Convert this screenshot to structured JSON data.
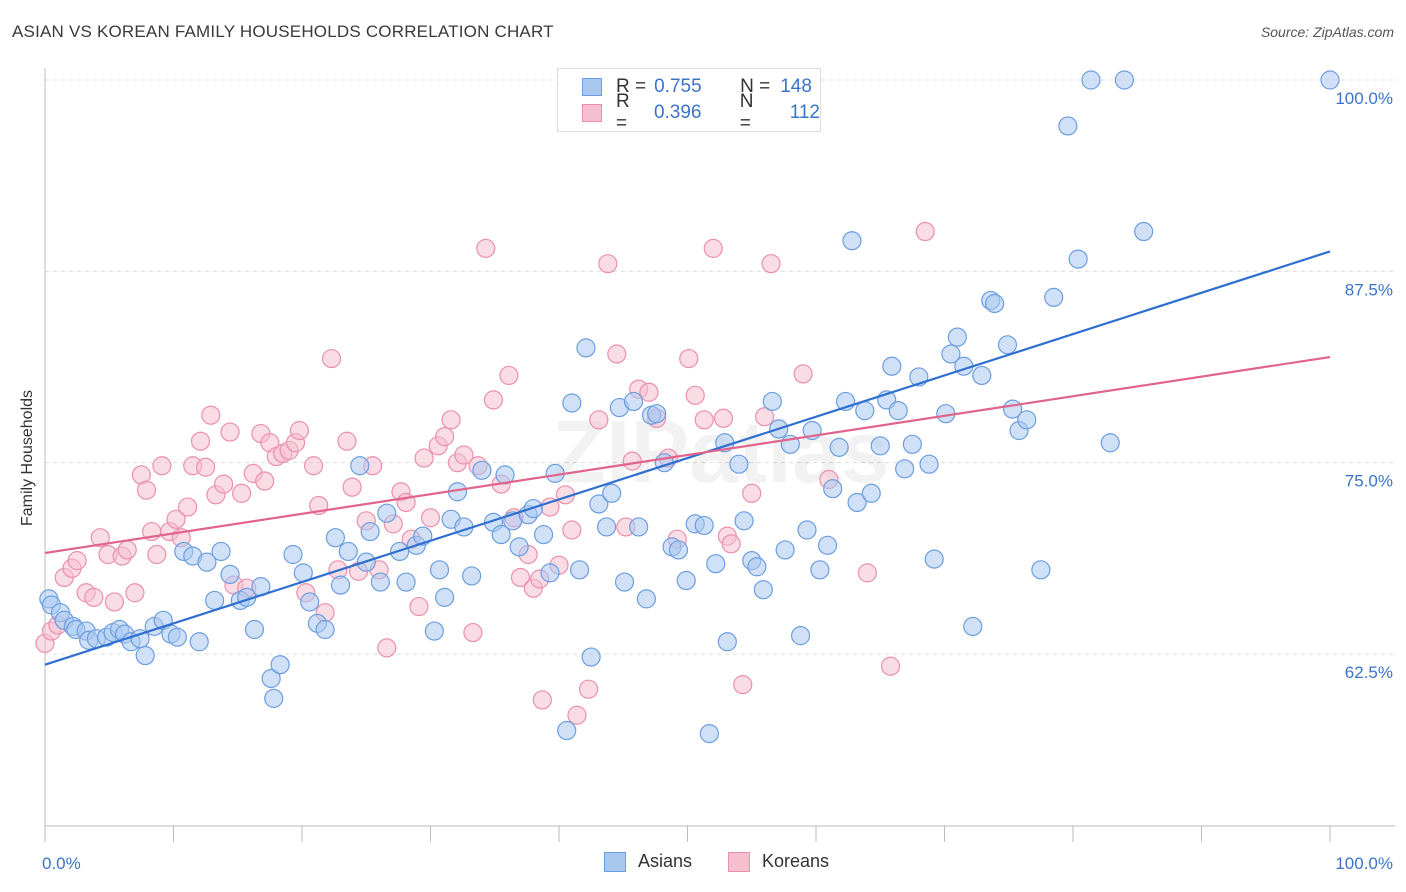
{
  "title": "ASIAN VS KOREAN FAMILY HOUSEHOLDS CORRELATION CHART",
  "source": "Source: ZipAtlas.com",
  "watermark": "ZIPatlas",
  "legend": {
    "asians": {
      "r_label": "R =",
      "r_value": "0.755",
      "n_label": "N =",
      "n_value": "148"
    },
    "koreans": {
      "r_label": "R =",
      "r_value": "0.396",
      "n_label": "N =",
      "n_value": "112"
    }
  },
  "colors": {
    "asians_fill": "#a9c8f0",
    "asians_stroke": "#6b9ee0",
    "asians_line": "#2f6fd0",
    "koreans_fill": "#f6bfd0",
    "koreans_stroke": "#eb8fae",
    "koreans_line": "#e0648c",
    "tick_label": "#3a74c8",
    "grid": "#dcdcdc"
  },
  "chart_data": {
    "type": "scatter",
    "title": "ASIAN VS KOREAN FAMILY HOUSEHOLDS CORRELATION CHART",
    "xlabel": "",
    "ylabel": "Family Households",
    "xlim": [
      0,
      100
    ],
    "ylim": [
      52.5,
      101
    ],
    "x_tick_labels": [
      "0.0%",
      "100.0%"
    ],
    "y_ticks": [
      62.5,
      75.0,
      87.5,
      100.0
    ],
    "y_tick_labels": [
      "62.5%",
      "75.0%",
      "87.5%",
      "100.0%"
    ],
    "grid": "horizontal dashed",
    "legend_position": "top-center",
    "bottom_legend": [
      "Asians",
      "Koreans"
    ],
    "series": [
      {
        "name": "Asians",
        "trend": {
          "x": [
            0,
            100
          ],
          "y": [
            61.8,
            88.8
          ]
        },
        "points": [
          [
            0.3,
            66.1
          ],
          [
            0.5,
            65.7
          ],
          [
            1.2,
            65.2
          ],
          [
            1.5,
            64.7
          ],
          [
            2.2,
            64.3
          ],
          [
            2.4,
            64.1
          ],
          [
            3.2,
            64.0
          ],
          [
            3.4,
            63.4
          ],
          [
            4.0,
            63.5
          ],
          [
            4.8,
            63.6
          ],
          [
            5.3,
            63.9
          ],
          [
            5.8,
            64.1
          ],
          [
            6.2,
            63.8
          ],
          [
            6.7,
            63.3
          ],
          [
            7.4,
            63.5
          ],
          [
            7.8,
            62.4
          ],
          [
            8.5,
            64.3
          ],
          [
            9.2,
            64.7
          ],
          [
            9.8,
            63.8
          ],
          [
            10.3,
            63.6
          ],
          [
            10.8,
            69.2
          ],
          [
            11.5,
            68.9
          ],
          [
            12.0,
            63.3
          ],
          [
            12.6,
            68.5
          ],
          [
            13.2,
            66.0
          ],
          [
            13.7,
            69.2
          ],
          [
            14.4,
            67.7
          ],
          [
            15.2,
            66.0
          ],
          [
            15.7,
            66.2
          ],
          [
            16.3,
            64.1
          ],
          [
            16.8,
            66.9
          ],
          [
            17.6,
            60.9
          ],
          [
            17.8,
            59.6
          ],
          [
            18.3,
            61.8
          ],
          [
            19.3,
            69.0
          ],
          [
            20.1,
            67.8
          ],
          [
            20.6,
            65.9
          ],
          [
            21.2,
            64.5
          ],
          [
            21.8,
            64.1
          ],
          [
            22.6,
            70.1
          ],
          [
            23.0,
            67.0
          ],
          [
            23.6,
            69.2
          ],
          [
            24.5,
            74.8
          ],
          [
            25.0,
            68.5
          ],
          [
            25.3,
            70.5
          ],
          [
            26.1,
            67.2
          ],
          [
            26.6,
            71.7
          ],
          [
            27.6,
            69.2
          ],
          [
            28.1,
            67.2
          ],
          [
            28.9,
            69.6
          ],
          [
            29.4,
            70.2
          ],
          [
            30.3,
            64.0
          ],
          [
            30.7,
            68.0
          ],
          [
            31.1,
            66.2
          ],
          [
            31.6,
            71.3
          ],
          [
            32.1,
            73.1
          ],
          [
            32.6,
            70.8
          ],
          [
            33.2,
            67.6
          ],
          [
            34.0,
            74.5
          ],
          [
            34.9,
            71.1
          ],
          [
            35.5,
            70.3
          ],
          [
            35.8,
            74.2
          ],
          [
            36.4,
            71.2
          ],
          [
            36.9,
            69.5
          ],
          [
            37.6,
            71.6
          ],
          [
            38.0,
            72.0
          ],
          [
            38.8,
            70.3
          ],
          [
            39.3,
            67.8
          ],
          [
            39.7,
            74.3
          ],
          [
            40.6,
            57.5
          ],
          [
            41.0,
            78.9
          ],
          [
            41.6,
            68.0
          ],
          [
            42.1,
            82.5
          ],
          [
            42.5,
            62.3
          ],
          [
            43.1,
            72.3
          ],
          [
            43.7,
            70.8
          ],
          [
            44.1,
            73.0
          ],
          [
            44.7,
            78.6
          ],
          [
            45.1,
            67.2
          ],
          [
            45.8,
            79.0
          ],
          [
            46.2,
            70.8
          ],
          [
            46.8,
            66.1
          ],
          [
            47.2,
            78.1
          ],
          [
            47.6,
            78.2
          ],
          [
            48.2,
            75.0
          ],
          [
            48.8,
            69.5
          ],
          [
            49.3,
            69.3
          ],
          [
            49.9,
            67.3
          ],
          [
            50.6,
            71.0
          ],
          [
            51.3,
            70.9
          ],
          [
            51.7,
            57.3
          ],
          [
            52.2,
            68.4
          ],
          [
            52.9,
            76.3
          ],
          [
            53.1,
            63.3
          ],
          [
            54.0,
            74.9
          ],
          [
            54.4,
            71.2
          ],
          [
            55.0,
            68.6
          ],
          [
            55.4,
            68.2
          ],
          [
            55.9,
            66.7
          ],
          [
            56.6,
            79.0
          ],
          [
            57.1,
            77.2
          ],
          [
            57.6,
            69.3
          ],
          [
            58.0,
            76.2
          ],
          [
            58.8,
            63.7
          ],
          [
            59.3,
            70.6
          ],
          [
            59.7,
            77.1
          ],
          [
            60.3,
            68.0
          ],
          [
            60.9,
            69.6
          ],
          [
            61.3,
            73.3
          ],
          [
            61.8,
            76.0
          ],
          [
            62.3,
            79.0
          ],
          [
            62.8,
            89.5
          ],
          [
            63.2,
            72.4
          ],
          [
            63.8,
            78.4
          ],
          [
            64.3,
            73.0
          ],
          [
            65.0,
            76.1
          ],
          [
            65.5,
            79.1
          ],
          [
            65.9,
            81.3
          ],
          [
            66.4,
            78.4
          ],
          [
            66.9,
            74.6
          ],
          [
            67.5,
            76.2
          ],
          [
            68.0,
            80.6
          ],
          [
            68.8,
            74.9
          ],
          [
            69.2,
            68.7
          ],
          [
            70.1,
            78.2
          ],
          [
            70.5,
            82.1
          ],
          [
            71.0,
            83.2
          ],
          [
            71.5,
            81.3
          ],
          [
            72.2,
            64.3
          ],
          [
            72.9,
            80.7
          ],
          [
            73.6,
            85.6
          ],
          [
            73.9,
            85.4
          ],
          [
            74.9,
            82.7
          ],
          [
            75.3,
            78.5
          ],
          [
            75.8,
            77.1
          ],
          [
            76.4,
            77.8
          ],
          [
            77.5,
            68.0
          ],
          [
            78.5,
            85.8
          ],
          [
            79.6,
            97.0
          ],
          [
            80.4,
            88.3
          ],
          [
            81.4,
            100.0
          ],
          [
            82.9,
            76.3
          ],
          [
            84.0,
            100.0
          ],
          [
            85.5,
            90.1
          ],
          [
            100.0,
            100.0
          ]
        ]
      },
      {
        "name": "Koreans",
        "trend": {
          "x": [
            0,
            100
          ],
          "y": [
            69.1,
            81.9
          ]
        },
        "points": [
          [
            0.0,
            63.2
          ],
          [
            0.5,
            64.0
          ],
          [
            1.0,
            64.4
          ],
          [
            1.5,
            67.5
          ],
          [
            2.1,
            68.1
          ],
          [
            2.5,
            68.6
          ],
          [
            3.2,
            66.5
          ],
          [
            3.8,
            66.2
          ],
          [
            4.3,
            70.1
          ],
          [
            4.9,
            69.0
          ],
          [
            5.4,
            65.9
          ],
          [
            6.0,
            68.9
          ],
          [
            6.4,
            69.3
          ],
          [
            7.0,
            66.5
          ],
          [
            7.5,
            74.2
          ],
          [
            7.9,
            73.2
          ],
          [
            8.3,
            70.5
          ],
          [
            8.7,
            69.0
          ],
          [
            9.1,
            74.8
          ],
          [
            9.7,
            70.5
          ],
          [
            10.2,
            71.3
          ],
          [
            10.6,
            70.1
          ],
          [
            11.1,
            72.1
          ],
          [
            11.5,
            74.8
          ],
          [
            12.1,
            76.4
          ],
          [
            12.5,
            74.7
          ],
          [
            12.9,
            78.1
          ],
          [
            13.3,
            72.9
          ],
          [
            13.9,
            73.6
          ],
          [
            14.4,
            77.0
          ],
          [
            14.7,
            67.0
          ],
          [
            15.3,
            73.0
          ],
          [
            15.7,
            66.8
          ],
          [
            16.2,
            74.3
          ],
          [
            16.8,
            76.9
          ],
          [
            17.1,
            73.8
          ],
          [
            17.5,
            76.3
          ],
          [
            18.0,
            75.4
          ],
          [
            18.5,
            75.6
          ],
          [
            19.0,
            75.8
          ],
          [
            19.5,
            76.3
          ],
          [
            19.8,
            77.1
          ],
          [
            20.3,
            66.5
          ],
          [
            20.9,
            74.8
          ],
          [
            21.3,
            72.2
          ],
          [
            21.8,
            65.2
          ],
          [
            22.3,
            81.8
          ],
          [
            22.8,
            68.0
          ],
          [
            23.5,
            76.4
          ],
          [
            23.9,
            73.4
          ],
          [
            24.4,
            67.9
          ],
          [
            25.0,
            71.2
          ],
          [
            25.5,
            74.8
          ],
          [
            26.0,
            68.0
          ],
          [
            26.6,
            62.9
          ],
          [
            27.1,
            71.0
          ],
          [
            27.7,
            73.1
          ],
          [
            28.1,
            72.4
          ],
          [
            28.5,
            70.0
          ],
          [
            29.1,
            65.6
          ],
          [
            29.5,
            75.3
          ],
          [
            30.0,
            71.4
          ],
          [
            30.6,
            76.1
          ],
          [
            31.1,
            76.7
          ],
          [
            31.6,
            77.8
          ],
          [
            32.1,
            75.0
          ],
          [
            32.6,
            75.5
          ],
          [
            33.3,
            63.9
          ],
          [
            33.7,
            74.8
          ],
          [
            34.3,
            89.0
          ],
          [
            34.9,
            79.1
          ],
          [
            35.5,
            73.6
          ],
          [
            36.1,
            80.7
          ],
          [
            36.5,
            71.4
          ],
          [
            37.0,
            67.5
          ],
          [
            37.6,
            69.0
          ],
          [
            38.0,
            66.8
          ],
          [
            38.5,
            67.4
          ],
          [
            38.7,
            59.5
          ],
          [
            39.3,
            72.1
          ],
          [
            40.0,
            68.3
          ],
          [
            40.5,
            72.9
          ],
          [
            41.0,
            70.6
          ],
          [
            41.4,
            58.5
          ],
          [
            42.3,
            60.2
          ],
          [
            43.1,
            77.8
          ],
          [
            43.8,
            88.0
          ],
          [
            44.5,
            82.1
          ],
          [
            45.2,
            70.8
          ],
          [
            45.7,
            75.1
          ],
          [
            46.2,
            79.8
          ],
          [
            47.0,
            79.6
          ],
          [
            47.6,
            77.9
          ],
          [
            48.5,
            75.3
          ],
          [
            49.2,
            70.0
          ],
          [
            50.1,
            81.8
          ],
          [
            50.6,
            79.4
          ],
          [
            51.3,
            77.8
          ],
          [
            52.0,
            89.0
          ],
          [
            52.8,
            77.9
          ],
          [
            53.1,
            70.2
          ],
          [
            53.4,
            69.7
          ],
          [
            54.3,
            60.5
          ],
          [
            55.0,
            73.0
          ],
          [
            56.0,
            78.0
          ],
          [
            56.5,
            88.0
          ],
          [
            59.0,
            80.8
          ],
          [
            61.0,
            73.9
          ],
          [
            64.0,
            67.8
          ],
          [
            65.8,
            61.7
          ],
          [
            68.5,
            90.1
          ]
        ]
      }
    ]
  }
}
